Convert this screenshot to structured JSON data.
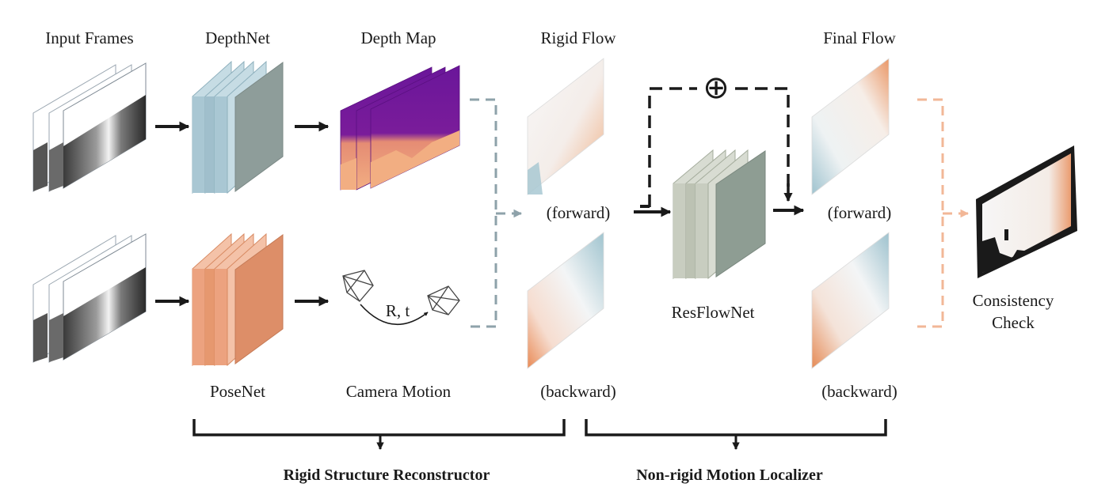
{
  "labels": {
    "input_frames": "Input Frames",
    "depthnet": "DepthNet",
    "depth_map": "Depth Map",
    "rigid_flow": "Rigid Flow",
    "final_flow": "Final Flow",
    "posenet": "PoseNet",
    "camera_motion": "Camera Motion",
    "rt": "R, t",
    "rigid_forward": "(forward)",
    "rigid_backward": "(backward)",
    "final_forward": "(forward)",
    "final_backward": "(backward)",
    "resflownet": "ResFlowNet",
    "consistency_line1": "Consistency",
    "consistency_line2": "Check",
    "plus_symbol": "⊕"
  },
  "groups": {
    "rigid_structure": "Rigid Structure Reconstructor",
    "non_rigid_motion": "Non-rigid Motion Localizer"
  },
  "colors": {
    "depthnet_blue": "#a9c7d3",
    "posenet_orange": "#eca27f",
    "resflownet_gray": "#8e9d93",
    "depth_purple": "#6a169a",
    "depth_peach": "#f0a77a",
    "flow_orange": "#e89a6e",
    "flow_blue": "#a3c6d1",
    "connector_gray": "#8ea2aa",
    "connector_orange": "#f2b797",
    "arrow_dark": "#1a1a1a"
  }
}
